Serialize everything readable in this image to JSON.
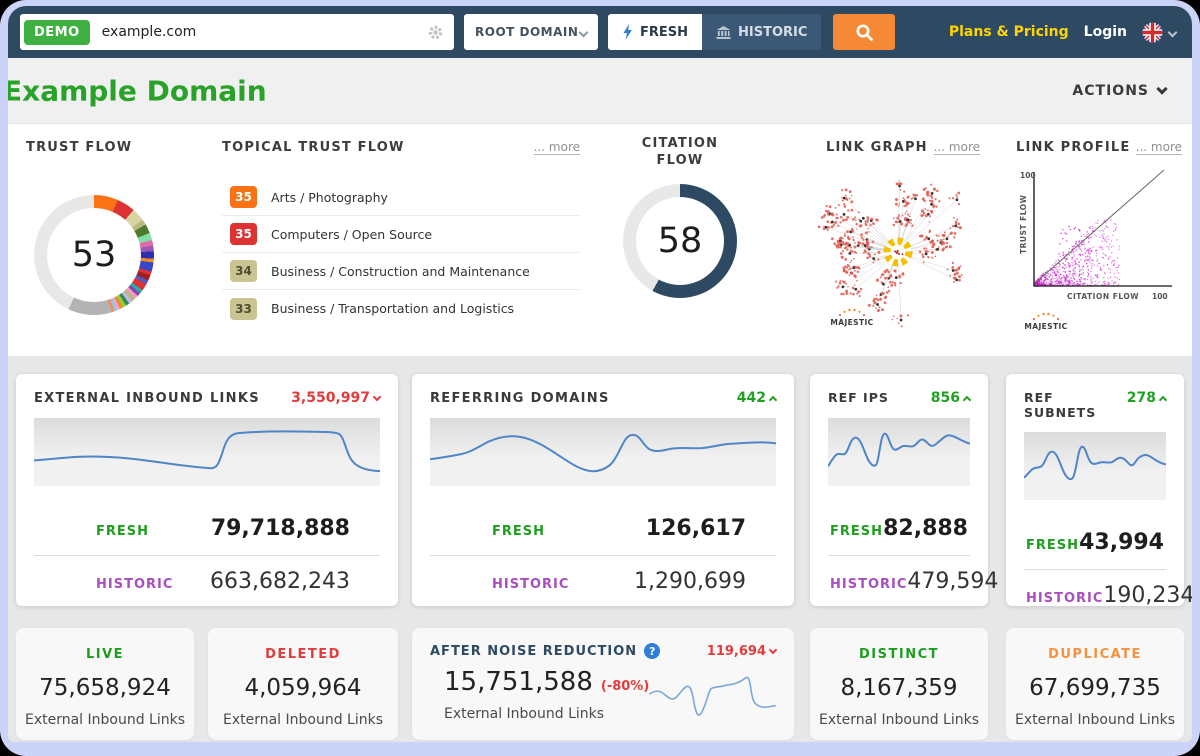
{
  "icons": {
    "question_mark": "?"
  },
  "topbar": {
    "demo_badge": "DEMO",
    "search_value": "example.com",
    "scope_selected": "ROOT DOMAIN",
    "fresh_tab": "FRESH",
    "historic_tab": "HISTORIC",
    "plans_pricing": "Plans & Pricing",
    "login": "Login"
  },
  "header": {
    "title": "Example Domain",
    "actions_label": "ACTIONS"
  },
  "metrics": {
    "trust_flow": {
      "label": "TRUST FLOW",
      "value": "53"
    },
    "topical_trust_flow": {
      "label": "TOPICAL TRUST FLOW",
      "more_label": "... more",
      "topics": [
        {
          "score": "35",
          "label": "Arts / Photography",
          "color": "#f97316",
          "text_color": "#ffffff"
        },
        {
          "score": "35",
          "label": "Computers / Open Source",
          "color": "#dd3333",
          "text_color": "#ffffff"
        },
        {
          "score": "34",
          "label": "Business / Construction and Maintenance",
          "color": "#c9c491",
          "text_color": "#4e4e33"
        },
        {
          "score": "33",
          "label": "Business / Transportation and Logistics",
          "color": "#c9c491",
          "text_color": "#4e4e33"
        }
      ]
    },
    "citation_flow": {
      "label": "CITATION FLOW",
      "value": "58"
    },
    "link_graph": {
      "label": "LINK GRAPH",
      "more_label": "... more",
      "brand": "MAJESTIC"
    },
    "link_profile": {
      "label": "LINK PROFILE",
      "more_label": "... more",
      "brand": "MAJESTIC",
      "y_axis_max": "100",
      "y_axis_label": "TRUST FLOW",
      "x_axis_label": "CITATION FLOW",
      "x_axis_max": "100"
    }
  },
  "stat_cards": [
    {
      "title": "EXTERNAL INBOUND LINKS",
      "delta": "3,550,997",
      "direction": "down",
      "fresh_label": "FRESH",
      "fresh_value": "79,718,888",
      "historic_label": "HISTORIC",
      "historic_value": "663,682,243"
    },
    {
      "title": "REFERRING DOMAINS",
      "delta": "442",
      "direction": "up",
      "fresh_label": "FRESH",
      "fresh_value": "126,617",
      "historic_label": "HISTORIC",
      "historic_value": "1,290,699"
    },
    {
      "title": "REF IPS",
      "delta": "856",
      "direction": "up",
      "fresh_label": "FRESH",
      "fresh_value": "82,888",
      "historic_label": "HISTORIC",
      "historic_value": "479,594"
    },
    {
      "title": "REF SUBNETS",
      "delta": "278",
      "direction": "up",
      "fresh_label": "FRESH",
      "fresh_value": "43,994",
      "historic_label": "HISTORIC",
      "historic_value": "190,234"
    }
  ],
  "bottom_cards": [
    {
      "label": "LIVE",
      "label_color": "#1f9d1f",
      "value": "75,658,924",
      "sub": "External Inbound Links"
    },
    {
      "label": "DELETED",
      "label_color": "#e23b3b",
      "value": "4,059,964",
      "sub": "External Inbound Links"
    },
    {
      "label": "AFTER NOISE REDUCTION",
      "label_color": "#2e4a63",
      "delta": "119,694",
      "direction": "down",
      "value": "15,751,588",
      "pct": "(-80%)",
      "sub": "External Inbound Links"
    },
    {
      "label": "DISTINCT",
      "label_color": "#1f9d1f",
      "value": "8,167,359",
      "sub": "External Inbound Links"
    },
    {
      "label": "DUPLICATE",
      "label_color": "#f5923e",
      "value": "67,699,735",
      "sub": "External Inbound Links"
    }
  ],
  "colors": {
    "topbar": "#2e4a63",
    "accent_orange": "#f58936",
    "fresh_green": "#1f9d1f",
    "historic_purple": "#a94ec0",
    "negative_red": "#e23b3b",
    "brand_yellow": "#ffd400",
    "sparkline_blue": "#4f86c6"
  }
}
